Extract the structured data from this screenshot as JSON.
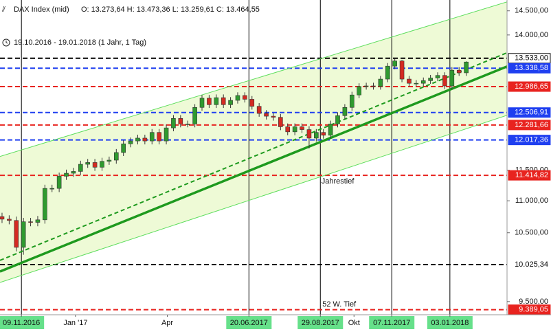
{
  "chart_data": {
    "type": "candlestick",
    "title": "DAX Index (mid)",
    "quote": "O: 13.273,64   H: 13.473,36   L: 13.259,61   C: 13.464,55",
    "subtitle": "19.10.2016 - 19.01.2018    (1 Jahr, 1 Tag)",
    "log_scale": true,
    "ylim": [
      9320,
      14730
    ],
    "xlim": [
      "2016-10-19",
      "2018-02-28"
    ],
    "yticks": [
      {
        "value": 9500,
        "label": "9.500,00"
      },
      {
        "value": 10500,
        "label": "10.500,00"
      },
      {
        "value": 11000,
        "label": "11.000,00"
      },
      {
        "value": 11500,
        "label": "11.500,00"
      },
      {
        "value": 14000,
        "label": "14.000,00"
      },
      {
        "value": 14500,
        "label": "14.500,00"
      }
    ],
    "xticks": [
      {
        "value": "2016-11-09",
        "label": "09.11.2016"
      },
      {
        "value": "2017-01-01",
        "label": "Jan '17"
      },
      {
        "value": "2017-04-01",
        "label": "Apr"
      },
      {
        "value": "2017-06-20",
        "label": "20.06.2017"
      },
      {
        "value": "2017-08-29",
        "label": "29.08.2017"
      },
      {
        "value": "2017-10-01",
        "label": "Okt"
      },
      {
        "value": "2017-11-07",
        "label": "07.11.2017"
      },
      {
        "value": "2018-01-03",
        "label": "03.01.2018"
      }
    ],
    "highlighted_xticks": [
      0,
      3,
      4,
      6,
      7
    ],
    "up_color": "#2f9a2f",
    "down_color": "#d42a22",
    "channel_color": "#eefad6",
    "levels": [
      {
        "value": 13533,
        "label": "13.533,00",
        "color": "#000000"
      },
      {
        "value": 13338.58,
        "label": "13.338,58",
        "color": "#1f3ff0"
      },
      {
        "value": 12986.65,
        "label": "12.986,65",
        "color": "#e8231f"
      },
      {
        "value": 12506.91,
        "label": "12.506,91",
        "color": "#1f3ff0"
      },
      {
        "value": 12281.66,
        "label": "12.281,66",
        "color": "#e8231f"
      },
      {
        "value": 12017.36,
        "label": "12.017,36",
        "color": "#1f3ff0"
      },
      {
        "value": 11414.82,
        "label": "11.414,82",
        "color": "#e8231f"
      },
      {
        "value": 10025.34,
        "label": "10.025,34",
        "color": "#000000"
      },
      {
        "value": 9389.05,
        "label": "9.389,05",
        "color": "#e8231f"
      }
    ],
    "trend_lines": [
      {
        "x": [
          "2016-10-19",
          "2018-02-28"
        ],
        "values": [
          11732,
          14690
        ],
        "color": "#5ede5e",
        "width": 1,
        "dashed": false
      },
      {
        "x": [
          "2016-10-19",
          "2018-02-28"
        ],
        "values": [
          10087,
          13642
        ],
        "color": "#1e9a1e",
        "width": 2,
        "dashed": true
      },
      {
        "x": [
          "2016-10-19",
          "2018-02-28"
        ],
        "values": [
          9925,
          13372
        ],
        "color": "#1e9a1e",
        "width": 3.5,
        "dashed": false
      },
      {
        "x": [
          "2016-10-19",
          "2018-02-28"
        ],
        "values": [
          9768,
          12456
        ],
        "color": "#5ede5e",
        "width": 1,
        "dashed": false
      }
    ],
    "annotations": [
      "Jahrestief",
      "52 W. Tief"
    ],
    "x": [
      "2016-10-21",
      "2016-10-28",
      "2016-11-04",
      "2016-11-11",
      "2016-11-18",
      "2016-11-25",
      "2016-12-02",
      "2016-12-09",
      "2016-12-16",
      "2016-12-23",
      "2016-12-30",
      "2017-01-06",
      "2017-01-13",
      "2017-01-20",
      "2017-01-27",
      "2017-02-03",
      "2017-02-10",
      "2017-02-17",
      "2017-02-24",
      "2017-03-03",
      "2017-03-10",
      "2017-03-17",
      "2017-03-24",
      "2017-03-31",
      "2017-04-07",
      "2017-04-14",
      "2017-04-21",
      "2017-04-28",
      "2017-05-05",
      "2017-05-12",
      "2017-05-19",
      "2017-05-26",
      "2017-06-02",
      "2017-06-09",
      "2017-06-16",
      "2017-06-23",
      "2017-06-30",
      "2017-07-07",
      "2017-07-14",
      "2017-07-21",
      "2017-07-28",
      "2017-08-04",
      "2017-08-11",
      "2017-08-18",
      "2017-08-25",
      "2017-09-01",
      "2017-09-08",
      "2017-09-15",
      "2017-09-22",
      "2017-09-29",
      "2017-10-06",
      "2017-10-13",
      "2017-10-20",
      "2017-10-27",
      "2017-11-03",
      "2017-11-10",
      "2017-11-17",
      "2017-11-24",
      "2017-12-01",
      "2017-12-08",
      "2017-12-15",
      "2017-12-22",
      "2017-12-29",
      "2018-01-05",
      "2018-01-12",
      "2018-01-19"
    ],
    "open": [
      10750,
      10710,
      10690,
      10280,
      10670,
      10660,
      10700,
      11200,
      11200,
      11400,
      11450,
      11480,
      11600,
      11630,
      11550,
      11650,
      11670,
      11800,
      11950,
      12000,
      12050,
      12000,
      12150,
      12000,
      12230,
      12400,
      12300,
      12300,
      12600,
      12770,
      12650,
      12780,
      12650,
      12730,
      12820,
      12750,
      12620,
      12490,
      12440,
      12420,
      12250,
      12160,
      12250,
      12200,
      12050,
      12150,
      12100,
      12300,
      12450,
      12600,
      12830,
      12990,
      13000,
      12990,
      13130,
      13380,
      13480,
      13130,
      13050,
      13050,
      13100,
      13150,
      13200,
      13000,
      13300,
      13250
    ],
    "high": [
      10810,
      10770,
      10750,
      10730,
      10730,
      10760,
      11260,
      11260,
      11460,
      11510,
      11540,
      11660,
      11690,
      11690,
      11710,
      11730,
      11860,
      12010,
      12060,
      12110,
      12110,
      12210,
      12210,
      12290,
      12460,
      12460,
      12360,
      12660,
      12830,
      12830,
      12840,
      12840,
      12790,
      12880,
      12880,
      12810,
      12680,
      12550,
      12500,
      12480,
      12310,
      12310,
      12310,
      12260,
      12210,
      12210,
      12360,
      12510,
      12660,
      12890,
      13050,
      13060,
      13060,
      13190,
      13440,
      13525,
      13500,
      13190,
      13110,
      13160,
      13210,
      13260,
      13260,
      13360,
      13360,
      13473
    ],
    "low": [
      10650,
      10630,
      10220,
      10170,
      10600,
      10600,
      10640,
      11140,
      11140,
      11340,
      11390,
      11420,
      11540,
      11490,
      11490,
      11590,
      11610,
      11740,
      11890,
      11940,
      11940,
      11940,
      11940,
      11940,
      12170,
      12240,
      12240,
      12240,
      12540,
      12590,
      12590,
      12590,
      12590,
      12670,
      12690,
      12560,
      12430,
      12380,
      12360,
      12190,
      12100,
      12100,
      12140,
      11870,
      11990,
      12040,
      12040,
      12240,
      12390,
      12540,
      12770,
      12930,
      12930,
      12930,
      13070,
      13320,
      13070,
      12990,
      12990,
      12990,
      13040,
      13090,
      12940,
      12940,
      13190,
      13190
    ],
    "close": [
      10710,
      10690,
      10280,
      10670,
      10660,
      10700,
      11200,
      11200,
      11400,
      11450,
      11480,
      11600,
      11630,
      11550,
      11650,
      11670,
      11800,
      11950,
      12000,
      12050,
      12000,
      12150,
      12000,
      12230,
      12400,
      12300,
      12300,
      12600,
      12770,
      12650,
      12780,
      12650,
      12730,
      12820,
      12750,
      12620,
      12490,
      12440,
      12420,
      12250,
      12160,
      12250,
      12200,
      12050,
      12150,
      12100,
      12300,
      12450,
      12600,
      12830,
      12990,
      13000,
      12990,
      13130,
      13380,
      13480,
      13130,
      13050,
      13050,
      13100,
      13150,
      13200,
      13000,
      13300,
      13250,
      13460
    ]
  }
}
